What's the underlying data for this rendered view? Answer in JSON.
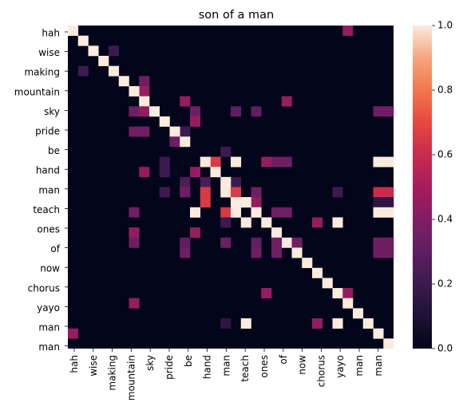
{
  "chart_data": {
    "type": "heatmap",
    "title": "son of a man",
    "row_labels": [
      "hah",
      "wise",
      "making",
      "mountain",
      "sky",
      "pride",
      "be",
      "hand",
      "man",
      "teach",
      "ones",
      "of",
      "now",
      "chorus",
      "yayo",
      "man",
      "man"
    ],
    "col_labels": [
      "hah",
      "wise",
      "making",
      "mountain",
      "sky",
      "pride",
      "be",
      "hand",
      "man",
      "teach",
      "ones",
      "of",
      "now",
      "chorus",
      "yayo",
      "man",
      "man"
    ],
    "tokens": [
      "hah",
      "",
      "wise",
      "",
      "making",
      "",
      "mountain",
      "",
      "sky",
      "",
      "pride",
      "",
      "be",
      "",
      "hand",
      "",
      "man",
      "",
      "teach",
      "",
      "ones",
      "",
      "of",
      "",
      "now",
      "",
      "chorus",
      "",
      "yayo",
      "",
      "man",
      "man"
    ],
    "cells": [
      [
        0,
        0,
        1.0
      ],
      [
        0,
        27,
        0.45
      ],
      [
        1,
        1,
        1.0
      ],
      [
        2,
        4,
        0.2
      ],
      [
        2,
        2,
        1.0
      ],
      [
        3,
        3,
        1.0
      ],
      [
        4,
        1,
        0.2
      ],
      [
        4,
        4,
        1.0
      ],
      [
        5,
        5,
        1.0
      ],
      [
        5,
        7,
        0.35
      ],
      [
        6,
        7,
        0.45
      ],
      [
        6,
        6,
        1.0
      ],
      [
        7,
        11,
        0.45
      ],
      [
        7,
        21,
        0.45
      ],
      [
        7,
        7,
        1.0
      ],
      [
        8,
        6,
        0.35
      ],
      [
        8,
        7,
        0.45
      ],
      [
        8,
        12,
        0.35
      ],
      [
        8,
        16,
        0.3
      ],
      [
        8,
        18,
        0.3
      ],
      [
        8,
        8,
        1.0
      ],
      [
        8,
        30,
        0.35
      ],
      [
        8,
        31,
        0.35
      ],
      [
        9,
        9,
        1.0
      ],
      [
        9,
        12,
        0.45
      ],
      [
        10,
        6,
        0.35
      ],
      [
        10,
        7,
        0.35
      ],
      [
        10,
        11,
        0.2
      ],
      [
        10,
        10,
        1.0
      ],
      [
        11,
        10,
        0.35
      ],
      [
        11,
        11,
        1.0
      ],
      [
        12,
        15,
        0.2
      ],
      [
        13,
        9,
        0.2
      ],
      [
        13,
        14,
        0.65
      ],
      [
        13,
        16,
        1.0
      ],
      [
        13,
        19,
        0.45
      ],
      [
        13,
        20,
        0.35
      ],
      [
        13,
        21,
        0.35
      ],
      [
        13,
        13,
        1.0
      ],
      [
        13,
        30,
        1.0
      ],
      [
        13,
        31,
        1.0
      ],
      [
        14,
        12,
        0.45
      ],
      [
        14,
        7,
        0.45
      ],
      [
        14,
        9,
        0.2
      ],
      [
        14,
        14,
        1.0
      ],
      [
        15,
        11,
        0.25
      ],
      [
        15,
        13,
        0.25
      ],
      [
        15,
        16,
        0.2
      ],
      [
        15,
        15,
        1.0
      ],
      [
        16,
        9,
        0.2
      ],
      [
        16,
        11,
        0.35
      ],
      [
        16,
        13,
        0.65
      ],
      [
        16,
        15,
        1.0
      ],
      [
        16,
        16,
        0.65
      ],
      [
        16,
        18,
        0.35
      ],
      [
        16,
        26,
        0.2
      ],
      [
        16,
        30,
        0.6
      ],
      [
        16,
        31,
        0.6
      ],
      [
        17,
        13,
        0.65
      ],
      [
        17,
        16,
        1.0
      ],
      [
        17,
        17,
        1.0
      ],
      [
        17,
        18,
        0.45
      ],
      [
        17,
        17,
        1.0
      ],
      [
        17,
        30,
        0.15
      ],
      [
        17,
        31,
        0.15
      ],
      [
        18,
        6,
        0.35
      ],
      [
        18,
        12,
        1.0
      ],
      [
        18,
        15,
        0.65
      ],
      [
        18,
        16,
        1.0
      ],
      [
        18,
        18,
        1.0
      ],
      [
        18,
        20,
        0.35
      ],
      [
        18,
        21,
        0.35
      ],
      [
        18,
        30,
        1.0
      ],
      [
        18,
        31,
        1.0
      ],
      [
        19,
        15,
        0.2
      ],
      [
        19,
        17,
        1.0
      ],
      [
        19,
        19,
        1.0
      ],
      [
        19,
        24,
        0.45
      ],
      [
        19,
        26,
        1.0
      ],
      [
        20,
        6,
        0.45
      ],
      [
        20,
        12,
        0.45
      ],
      [
        20,
        20,
        1.0
      ],
      [
        21,
        6,
        0.35
      ],
      [
        21,
        11,
        0.3
      ],
      [
        21,
        15,
        0.35
      ],
      [
        21,
        18,
        0.3
      ],
      [
        21,
        21,
        1.0
      ],
      [
        21,
        20,
        0.35
      ],
      [
        21,
        22,
        0.35
      ],
      [
        21,
        30,
        0.35
      ],
      [
        21,
        31,
        0.35
      ],
      [
        22,
        11,
        0.35
      ],
      [
        22,
        18,
        0.35
      ],
      [
        22,
        20,
        0.35
      ],
      [
        22,
        22,
        1.0
      ],
      [
        22,
        30,
        0.35
      ],
      [
        22,
        31,
        0.35
      ],
      [
        23,
        23,
        1.0
      ],
      [
        24,
        24,
        1.0
      ],
      [
        25,
        25,
        1.0
      ],
      [
        26,
        19,
        0.45
      ],
      [
        26,
        26,
        1.0
      ],
      [
        26,
        27,
        0.45
      ],
      [
        27,
        6,
        0.45
      ],
      [
        27,
        27,
        1.0
      ],
      [
        28,
        28,
        1.0
      ],
      [
        29,
        15,
        0.15
      ],
      [
        29,
        17,
        1.0
      ],
      [
        29,
        24,
        0.45
      ],
      [
        29,
        26,
        1.0
      ],
      [
        29,
        29,
        1.0
      ],
      [
        30,
        0,
        0.45
      ],
      [
        30,
        30,
        1.0
      ],
      [
        31,
        31,
        1.0
      ]
    ],
    "extra": {
      "rows": 32,
      "cols": 32
    },
    "colorbar_ticks": [
      "0.0",
      "0.2",
      "0.4",
      "0.6",
      "0.8",
      "1.0"
    ],
    "vmin": 0,
    "vmax": 1
  }
}
